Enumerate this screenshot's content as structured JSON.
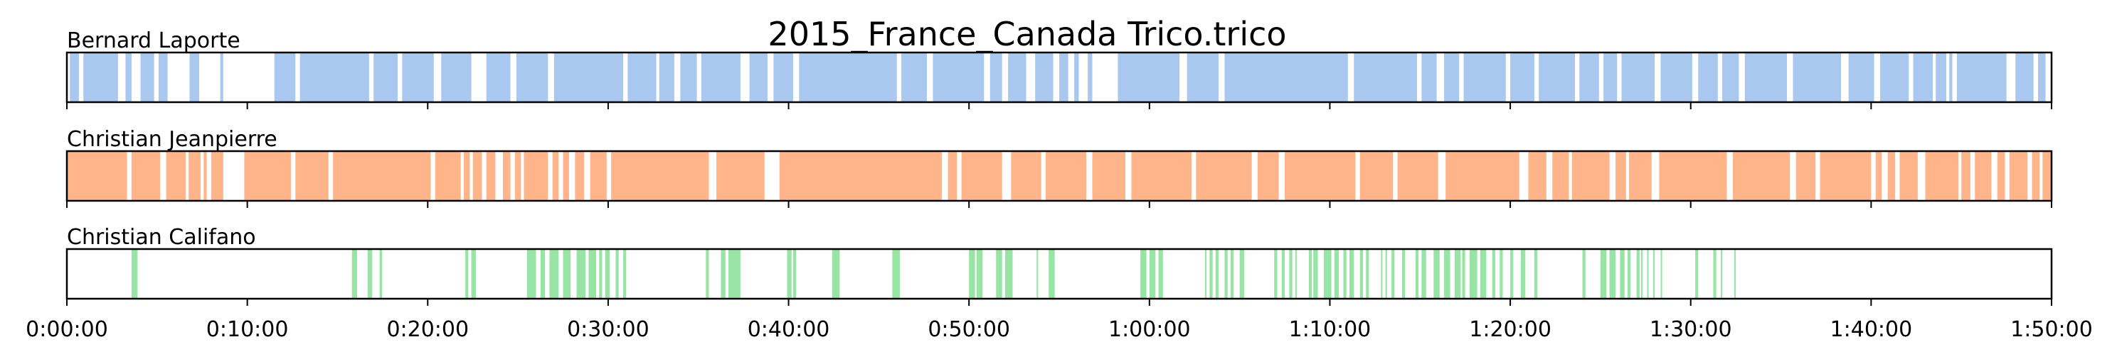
{
  "chart_data": {
    "type": "timeline",
    "title": "2015_France_Canada Trico.trico",
    "x_unit": "seconds",
    "xlim": [
      0,
      6600
    ],
    "ticks": [
      {
        "value": 0,
        "label": "0:00:00"
      },
      {
        "value": 600,
        "label": "0:10:00"
      },
      {
        "value": 1200,
        "label": "0:20:00"
      },
      {
        "value": 1800,
        "label": "0:30:00"
      },
      {
        "value": 2400,
        "label": "0:40:00"
      },
      {
        "value": 3000,
        "label": "0:50:00"
      },
      {
        "value": 3600,
        "label": "1:00:00"
      },
      {
        "value": 4200,
        "label": "1:10:00"
      },
      {
        "value": 4800,
        "label": "1:20:00"
      },
      {
        "value": 5400,
        "label": "1:30:00"
      },
      {
        "value": 6000,
        "label": "1:40:00"
      },
      {
        "value": 6600,
        "label": "1:50:00"
      }
    ],
    "series": [
      {
        "name": "Bernard Laporte",
        "color": "#a8c8f0",
        "segments": [
          [
            10,
            40
          ],
          [
            55,
            170
          ],
          [
            195,
            215
          ],
          [
            245,
            290
          ],
          [
            305,
            335
          ],
          [
            408,
            440
          ],
          [
            510,
            520
          ],
          [
            690,
            760
          ],
          [
            775,
            1005
          ],
          [
            1020,
            1100
          ],
          [
            1115,
            1220
          ],
          [
            1245,
            1345
          ],
          [
            1395,
            1475
          ],
          [
            1495,
            1600
          ],
          [
            1620,
            1850
          ],
          [
            1865,
            1960
          ],
          [
            1970,
            2020
          ],
          [
            2040,
            2095
          ],
          [
            2110,
            2240
          ],
          [
            2270,
            2330
          ],
          [
            2350,
            2415
          ],
          [
            2435,
            2760
          ],
          [
            2775,
            2860
          ],
          [
            2880,
            3050
          ],
          [
            3070,
            3110
          ],
          [
            3130,
            3190
          ],
          [
            3220,
            3280
          ],
          [
            3300,
            3330
          ],
          [
            3350,
            3365
          ],
          [
            3395,
            3410
          ],
          [
            3495,
            3700
          ],
          [
            3725,
            3830
          ],
          [
            3850,
            4260
          ],
          [
            4280,
            4490
          ],
          [
            4505,
            4555
          ],
          [
            4580,
            4630
          ],
          [
            4645,
            4785
          ],
          [
            4800,
            4880
          ],
          [
            4895,
            5015
          ],
          [
            5030,
            5095
          ],
          [
            5110,
            5155
          ],
          [
            5170,
            5280
          ],
          [
            5300,
            5405
          ],
          [
            5425,
            5490
          ],
          [
            5505,
            5560
          ],
          [
            5580,
            5720
          ],
          [
            5740,
            5900
          ],
          [
            5925,
            6010
          ],
          [
            6030,
            6125
          ],
          [
            6140,
            6205
          ],
          [
            6215,
            6250
          ],
          [
            6260,
            6270
          ],
          [
            6285,
            6450
          ],
          [
            6480,
            6540
          ],
          [
            6555,
            6580
          ]
        ]
      },
      {
        "name": "Christian Jeanpierre",
        "color": "#ffb48a",
        "segments": [
          [
            0,
            200
          ],
          [
            215,
            310
          ],
          [
            330,
            395
          ],
          [
            405,
            445
          ],
          [
            455,
            465
          ],
          [
            480,
            520
          ],
          [
            590,
            745
          ],
          [
            760,
            870
          ],
          [
            885,
            1210
          ],
          [
            1225,
            1310
          ],
          [
            1320,
            1340
          ],
          [
            1350,
            1380
          ],
          [
            1395,
            1425
          ],
          [
            1450,
            1475
          ],
          [
            1490,
            1510
          ],
          [
            1520,
            1600
          ],
          [
            1615,
            1635
          ],
          [
            1650,
            1670
          ],
          [
            1690,
            1720
          ],
          [
            1740,
            1795
          ],
          [
            1810,
            2135
          ],
          [
            2160,
            2320
          ],
          [
            2370,
            2910
          ],
          [
            2930,
            2960
          ],
          [
            2975,
            3110
          ],
          [
            3140,
            3240
          ],
          [
            3255,
            3390
          ],
          [
            3410,
            3520
          ],
          [
            3540,
            3740
          ],
          [
            3755,
            3940
          ],
          [
            3960,
            4030
          ],
          [
            4050,
            4285
          ],
          [
            4300,
            4410
          ],
          [
            4425,
            4560
          ],
          [
            4585,
            4830
          ],
          [
            4860,
            4920
          ],
          [
            4940,
            4995
          ],
          [
            5005,
            5130
          ],
          [
            5150,
            5185
          ],
          [
            5195,
            5270
          ],
          [
            5295,
            5520
          ],
          [
            5540,
            5730
          ],
          [
            5750,
            5815
          ],
          [
            5830,
            6000
          ],
          [
            6015,
            6035
          ],
          [
            6055,
            6080
          ],
          [
            6095,
            6155
          ],
          [
            6180,
            6290
          ],
          [
            6300,
            6330
          ],
          [
            6345,
            6400
          ],
          [
            6420,
            6445
          ],
          [
            6460,
            6520
          ],
          [
            6535,
            6560
          ],
          [
            6570,
            6600
          ]
        ]
      },
      {
        "name": "Christian Califano",
        "color": "#98e4a4",
        "segments": [
          [
            215,
            235
          ],
          [
            948,
            965
          ],
          [
            1000,
            1015
          ],
          [
            1040,
            1048
          ],
          [
            1325,
            1335
          ],
          [
            1345,
            1360
          ],
          [
            1530,
            1560
          ],
          [
            1575,
            1590
          ],
          [
            1605,
            1635
          ],
          [
            1650,
            1675
          ],
          [
            1695,
            1725
          ],
          [
            1735,
            1760
          ],
          [
            1770,
            1780
          ],
          [
            1790,
            1805
          ],
          [
            1825,
            1835
          ],
          [
            1850,
            1860
          ],
          [
            2125,
            2135
          ],
          [
            2175,
            2190
          ],
          [
            2200,
            2240
          ],
          [
            2395,
            2410
          ],
          [
            2415,
            2425
          ],
          [
            2545,
            2570
          ],
          [
            2745,
            2770
          ],
          [
            3000,
            3020
          ],
          [
            3025,
            3045
          ],
          [
            3090,
            3110
          ],
          [
            3120,
            3145
          ],
          [
            3225,
            3230
          ],
          [
            3265,
            3285
          ],
          [
            3570,
            3590
          ],
          [
            3600,
            3620
          ],
          [
            3630,
            3645
          ],
          [
            3785,
            3790
          ],
          [
            3800,
            3810
          ],
          [
            3820,
            3830
          ],
          [
            3850,
            3860
          ],
          [
            3870,
            3880
          ],
          [
            3900,
            3915
          ],
          [
            4015,
            4025
          ],
          [
            4040,
            4050
          ],
          [
            4065,
            4075
          ],
          [
            4085,
            4090
          ],
          [
            4130,
            4140
          ],
          [
            4145,
            4160
          ],
          [
            4180,
            4205
          ],
          [
            4215,
            4230
          ],
          [
            4245,
            4255
          ],
          [
            4265,
            4280
          ],
          [
            4300,
            4310
          ],
          [
            4320,
            4330
          ],
          [
            4370,
            4375
          ],
          [
            4385,
            4390
          ],
          [
            4405,
            4415
          ],
          [
            4440,
            4450
          ],
          [
            4485,
            4495
          ],
          [
            4505,
            4520
          ],
          [
            4545,
            4565
          ],
          [
            4580,
            4600
          ],
          [
            4615,
            4635
          ],
          [
            4640,
            4650
          ],
          [
            4665,
            4690
          ],
          [
            4700,
            4720
          ],
          [
            4740,
            4750
          ],
          [
            4765,
            4775
          ],
          [
            4800,
            4810
          ],
          [
            4835,
            4850
          ],
          [
            4880,
            4890
          ],
          [
            5040,
            5050
          ],
          [
            5100,
            5120
          ],
          [
            5130,
            5150
          ],
          [
            5165,
            5180
          ],
          [
            5190,
            5200
          ],
          [
            5220,
            5230
          ],
          [
            5235,
            5240
          ],
          [
            5255,
            5260
          ],
          [
            5275,
            5280
          ],
          [
            5300,
            5305
          ],
          [
            5415,
            5425
          ],
          [
            5475,
            5485
          ],
          [
            5500,
            5505
          ],
          [
            5545,
            5550
          ]
        ]
      }
    ]
  }
}
